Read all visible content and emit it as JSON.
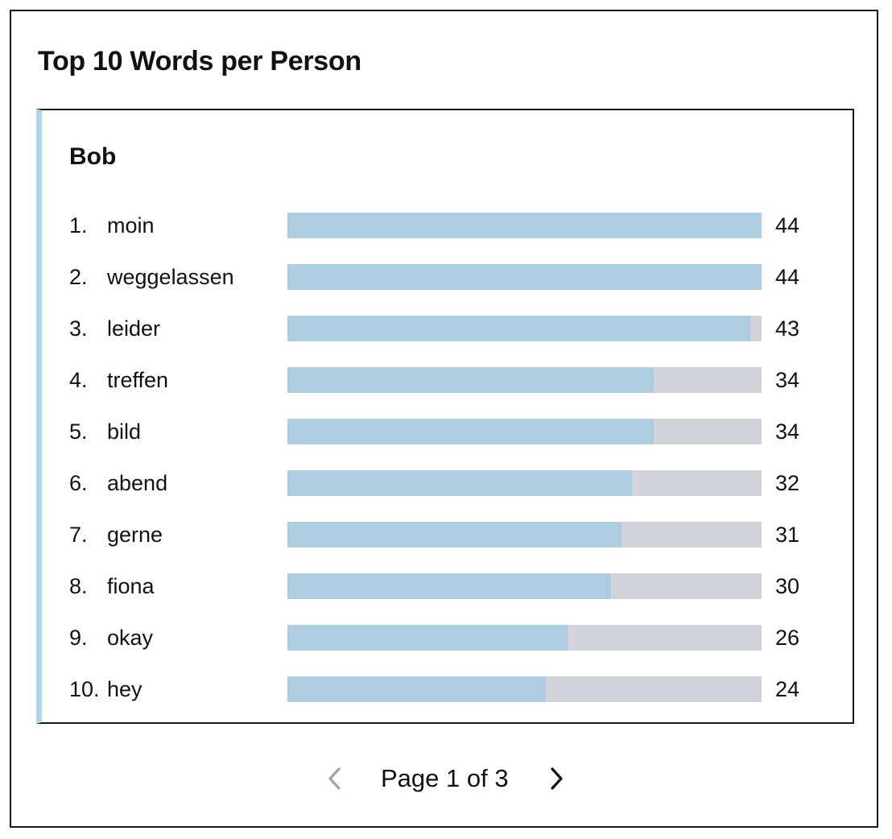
{
  "card": {
    "title": "Top 10 Words per Person"
  },
  "person": {
    "name": "Bob"
  },
  "words": [
    {
      "rank": "1.",
      "word": "moin",
      "count": "44",
      "fraction": 1.0
    },
    {
      "rank": "2.",
      "word": "weggelassen",
      "count": "44",
      "fraction": 1.0
    },
    {
      "rank": "3.",
      "word": "leider",
      "count": "43",
      "fraction": 0.977
    },
    {
      "rank": "4.",
      "word": "treffen",
      "count": "34",
      "fraction": 0.773
    },
    {
      "rank": "5.",
      "word": "bild",
      "count": "34",
      "fraction": 0.773
    },
    {
      "rank": "6.",
      "word": "abend",
      "count": "32",
      "fraction": 0.727
    },
    {
      "rank": "7.",
      "word": "gerne",
      "count": "31",
      "fraction": 0.705
    },
    {
      "rank": "8.",
      "word": "fiona",
      "count": "30",
      "fraction": 0.682
    },
    {
      "rank": "9.",
      "word": "okay",
      "count": "26",
      "fraction": 0.591
    },
    {
      "rank": "10.",
      "word": "hey",
      "count": "24",
      "fraction": 0.545
    }
  ],
  "colors": {
    "bar_fill": "#aecde0",
    "bar_track": "#d1d5db",
    "panel_accent": "#add8e6",
    "prev_arrow": "#9ca3af",
    "next_arrow": "#111111"
  },
  "icons": {
    "prev": "chevron-left-icon",
    "next": "chevron-right-icon"
  },
  "pagination": {
    "label": "Page 1 of 3"
  }
}
